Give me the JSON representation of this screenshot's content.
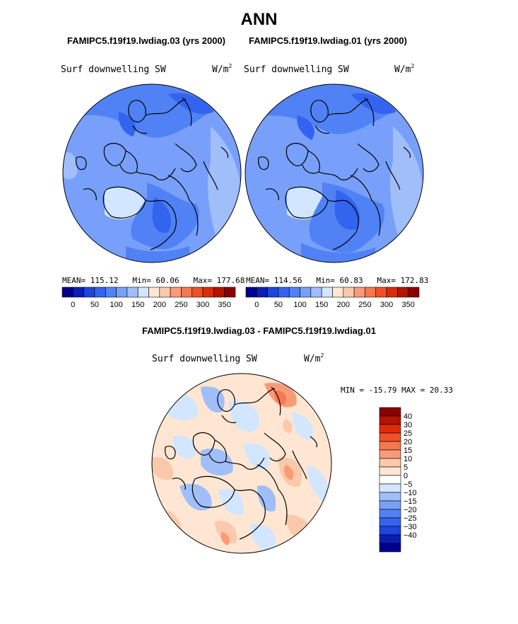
{
  "title": "ANN",
  "panels": [
    {
      "case": "FAMIPC5.f19f19.lwdiag.03 (yrs 2000)",
      "variable": "Surf downwelling SW",
      "units": "W/m²",
      "stats": {
        "mean": "MEAN= 115.12",
        "min": "Min=  60.06",
        "max": "Max= 177.68"
      }
    },
    {
      "case": "FAMIPC5.f19f19.lwdiag.01 (yrs 2000)",
      "variable": "Surf downwelling SW",
      "units": "W/m²",
      "stats": {
        "mean": "MEAN= 114.56",
        "min": "Min=  60.83",
        "max": "Max= 172.83"
      }
    }
  ],
  "colorbar_top": {
    "colors": [
      "#00008c",
      "#0a1eb4",
      "#1e46dc",
      "#3264f0",
      "#5082f5",
      "#78a0fa",
      "#a0befa",
      "#d2e6ff",
      "#ffe6d2",
      "#fac8aa",
      "#fa9b78",
      "#f57850",
      "#f05028",
      "#dc2d0a",
      "#b41400",
      "#8c0000"
    ],
    "labels": [
      "0",
      "50",
      "100",
      "150",
      "200",
      "250",
      "300",
      "350"
    ]
  },
  "difference": {
    "title": "FAMIPC5.f19f19.lwdiag.03 - FAMIPC5.f19f19.lwdiag.01",
    "variable": "Surf downwelling SW",
    "units": "W/m²",
    "minmax": "MIN = -15.79 MAX =  20.33"
  },
  "colorbar_diff": {
    "colors": [
      "#8c0000",
      "#b41400",
      "#dc2d0a",
      "#f05028",
      "#f57850",
      "#fa9b78",
      "#fac8aa",
      "#ffe6d2",
      "#ffffff",
      "#d2e6ff",
      "#a0befa",
      "#78a0fa",
      "#5082f5",
      "#3264f0",
      "#1e46dc",
      "#0a1eb4",
      "#00008c"
    ],
    "labels": [
      "40",
      "30",
      "25",
      "20",
      "15",
      "10",
      "5",
      "0",
      "-5",
      "-10",
      "-15",
      "-20",
      "-25",
      "-30",
      "-40"
    ]
  }
}
